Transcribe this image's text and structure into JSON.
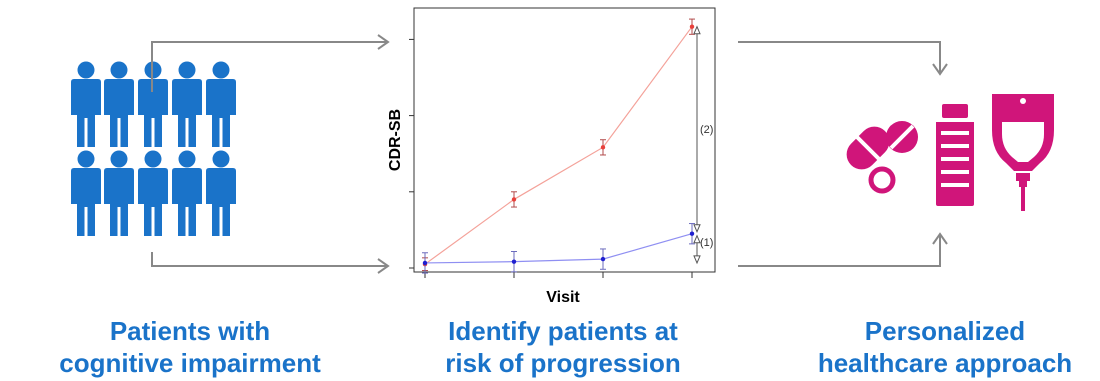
{
  "captions": {
    "left": "Patients with\ncognitive impairment",
    "middle": "Identify patients at\nrisk of progression",
    "right": "Personalized\nhealthcare approach"
  },
  "colors": {
    "people": "#1a73c9",
    "caption": "#1a73c9",
    "treatments": "#d0157a",
    "arrows": "#888888",
    "high_risk_series": "#e8403b",
    "low_risk_series": "#1f1fd0"
  },
  "icons": {
    "people": "person-icon",
    "pills": "pills-icon",
    "vial": "vial-icon",
    "iv_bag": "iv-bag-icon"
  },
  "chart_data": {
    "type": "line",
    "xlabel": "Visit",
    "ylabel": "CDR-SB",
    "x": [
      1,
      2,
      3,
      4
    ],
    "ylim": [
      0,
      10
    ],
    "series": [
      {
        "values": [
          0.15,
          2.7,
          4.75,
          9.5
        ],
        "err": [
          0.25,
          0.3,
          0.3,
          0.3
        ]
      },
      {
        "values": [
          0.2,
          0.25,
          0.35,
          1.35
        ],
        "err": [
          0.4,
          0.4,
          0.4,
          0.4
        ]
      }
    ],
    "annotations": [
      "(2)",
      "(1)"
    ]
  }
}
